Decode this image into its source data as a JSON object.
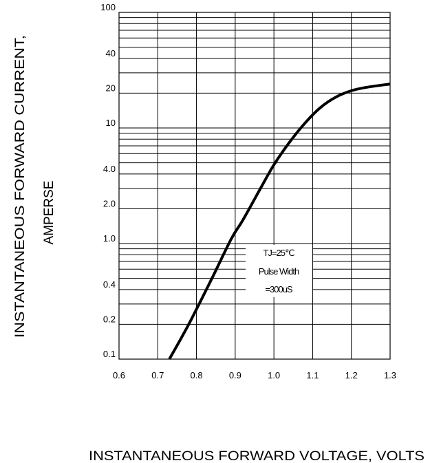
{
  "chart_data": {
    "type": "line",
    "xlabel": "INSTANTANEOUS FORWARD VOLTAGE,  VOLTS",
    "ylabel_lines": [
      "INSTANTANEOUS FORWARD CURRENT,",
      "AMPERSE"
    ],
    "xscale": "linear",
    "yscale": "log",
    "xlim": [
      0.6,
      1.3
    ],
    "ylim": [
      0.1,
      100
    ],
    "x_ticks": [
      "0.6",
      "0.7",
      "0.8",
      "0.9",
      "1.0",
      "1.1",
      "1.2",
      "1.3"
    ],
    "y_ticks": [
      {
        "value": 100,
        "label": "100"
      },
      {
        "value": 40,
        "label": "40"
      },
      {
        "value": 20,
        "label": "20"
      },
      {
        "value": 10,
        "label": "10"
      },
      {
        "value": 4,
        "label": "4.0"
      },
      {
        "value": 2,
        "label": "2.0"
      },
      {
        "value": 1,
        "label": "1.0"
      },
      {
        "value": 0.4,
        "label": "0.4"
      },
      {
        "value": 0.2,
        "label": "0.2"
      },
      {
        "value": 0.1,
        "label": "0.1"
      }
    ],
    "grid": true,
    "annotation": [
      "TJ=25℃",
      "Pulse Width",
      "=300uS"
    ],
    "series": [
      {
        "color": "#000000",
        "x": [
          0.73,
          0.78,
          0.84,
          0.89,
          0.92,
          0.97,
          1.0,
          1.04,
          1.08,
          1.12,
          1.16,
          1.2,
          1.24,
          1.3
        ],
        "y": [
          0.1,
          0.2,
          0.5,
          1.1,
          1.6,
          3.2,
          4.8,
          7.5,
          11.0,
          15.0,
          18.5,
          21.0,
          22.5,
          24.0
        ]
      }
    ]
  }
}
